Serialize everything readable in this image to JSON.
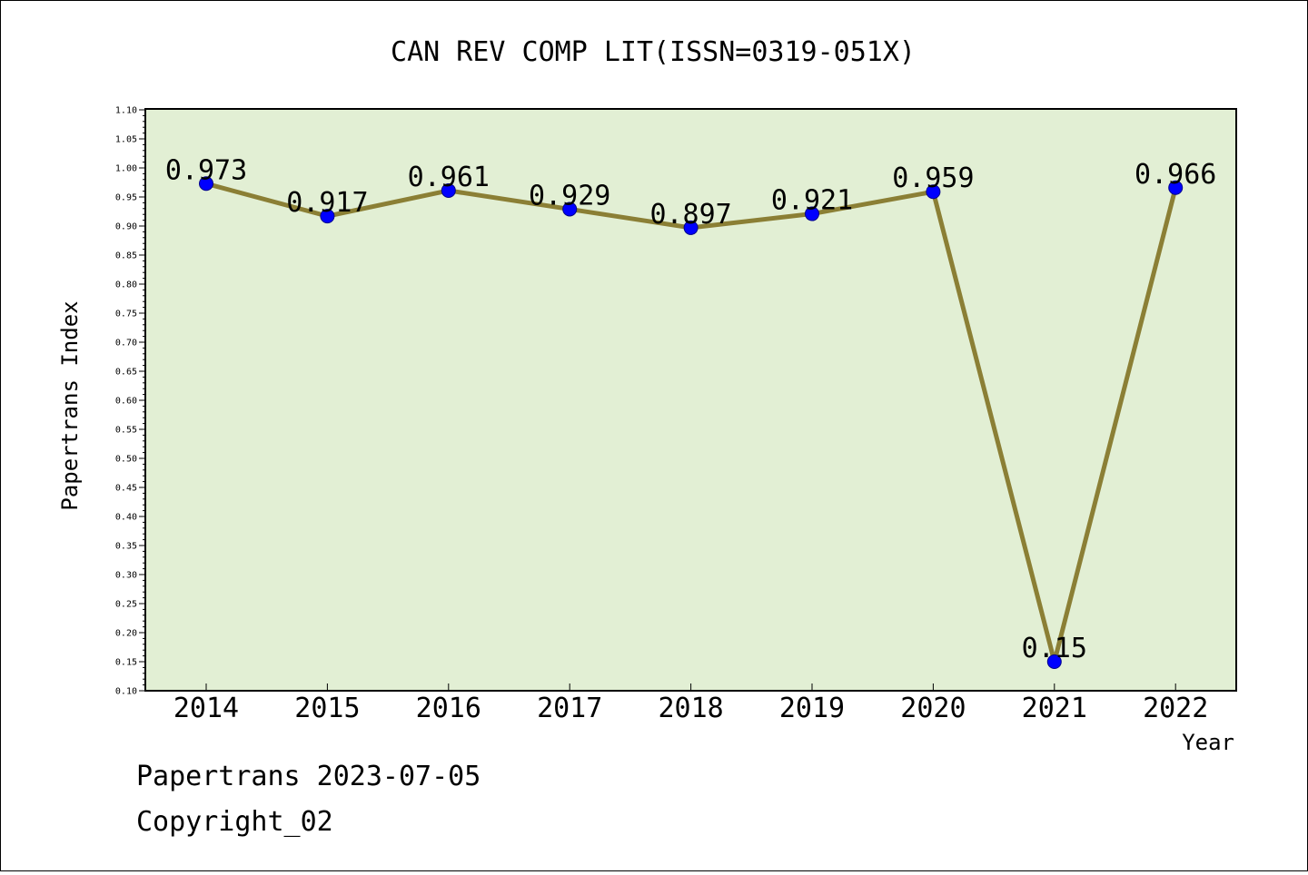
{
  "chart_data": {
    "type": "line",
    "title": "CAN REV COMP LIT(ISSN=0319-051X)",
    "xlabel": "Year",
    "ylabel": "Papertrans Index",
    "categories": [
      "2014",
      "2015",
      "2016",
      "2017",
      "2018",
      "2019",
      "2020",
      "2021",
      "2022"
    ],
    "series": [
      {
        "values": [
          0.973,
          0.917,
          0.961,
          0.929,
          0.897,
          0.921,
          0.959,
          0.15,
          0.966
        ],
        "labels": [
          "0.973",
          "0.917",
          "0.961",
          "0.929",
          "0.897",
          "0.921",
          "0.959",
          "0.15",
          "0.966"
        ]
      }
    ],
    "ylim": [
      0.1,
      1.1
    ],
    "yticks": [
      "0.10",
      "0.15",
      "0.20",
      "0.25",
      "0.30",
      "0.35",
      "0.40",
      "0.45",
      "0.50",
      "0.55",
      "0.60",
      "0.65",
      "0.70",
      "0.75",
      "0.80",
      "0.85",
      "0.90",
      "0.95",
      "1.00",
      "1.05",
      "1.10"
    ],
    "grid": false,
    "colors": {
      "plot_background": "#e2efd4",
      "line": "#8b7f35",
      "marker": "#0000ff"
    }
  },
  "footer": {
    "date_line": "Papertrans 2023-07-05",
    "copyright": "Copyright_02"
  }
}
